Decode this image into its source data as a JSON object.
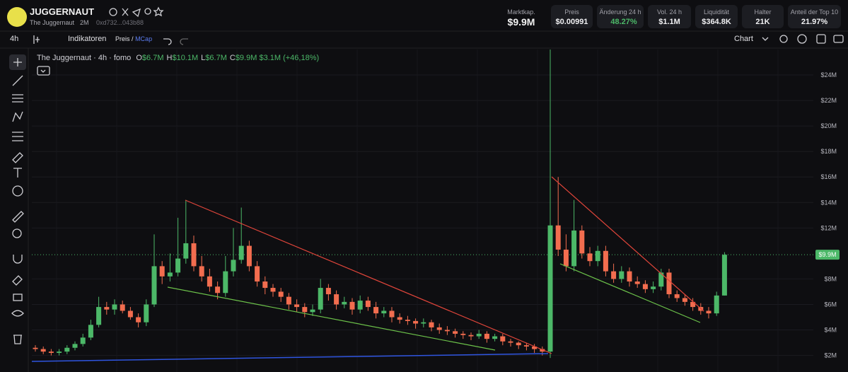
{
  "header": {
    "symbol": "JUGGERNAUT",
    "name": "The Juggernaut",
    "age": "2M",
    "address": "0xd732...043b88",
    "stats": [
      {
        "label": "Marktkap.",
        "value": "$9.9M"
      },
      {
        "label": "Preis",
        "value": "$0.00991"
      },
      {
        "label": "Änderung 24 h",
        "value": "48.27%"
      },
      {
        "label": "Vol. 24 h",
        "value": "$1.1M"
      },
      {
        "label": "Liquidität",
        "value": "$364.8K"
      },
      {
        "label": "Halter",
        "value": "21K"
      },
      {
        "label": "Anteil der Top 10",
        "value": "21.97%"
      }
    ]
  },
  "toolbar": {
    "interval": "4h",
    "indicators": "Indikatoren",
    "price": "Preis",
    "separator": "/",
    "mcap": "MCap",
    "chart_type": "Chart"
  },
  "chart_data": {
    "type": "candlestick",
    "legend": {
      "title": "The Juggernaut · 4h · fomo",
      "ohlc": [
        {
          "key": "O",
          "value": "$6.7M"
        },
        {
          "key": "H",
          "value": "$10.1M"
        },
        {
          "key": "L",
          "value": "$6.7M"
        },
        {
          "key": "C",
          "value": "$9.9M"
        }
      ],
      "change": "$3.1M (+46,18%)"
    },
    "up_color": "#4cb868",
    "down_color": "#f26d4f",
    "open": [
      2.6,
      2.5,
      2.3,
      2.2,
      2.3,
      2.6,
      2.9,
      3.4,
      4.4,
      5.8,
      5.6,
      6.0,
      5.5,
      5.0,
      4.6,
      6.0,
      9.0,
      8.2,
      8.5,
      9.6,
      10.8,
      9.0,
      8.2,
      7.4,
      6.9,
      8.6,
      9.5,
      10.6,
      9.0,
      7.8,
      7.3,
      7.0,
      6.6,
      6.0,
      5.8,
      5.4,
      5.6,
      7.3,
      6.8,
      6.0,
      6.2,
      5.6,
      6.3,
      5.8,
      5.3,
      5.5,
      5.0,
      4.8,
      4.7,
      4.5,
      4.6,
      4.2,
      4.0,
      3.9,
      3.7,
      3.6,
      3.5,
      3.7,
      3.3,
      3.5,
      3.1,
      3.0,
      2.8,
      2.7,
      2.5,
      2.3,
      12.2,
      10.3,
      9.0,
      11.8,
      10.0,
      9.4,
      10.2,
      8.6,
      8.0,
      8.6,
      7.8,
      7.6,
      7.2,
      7.4,
      8.5,
      6.8,
      6.5,
      6.2,
      5.8,
      5.5,
      5.3,
      6.7
    ],
    "high": [
      2.8,
      2.7,
      2.5,
      2.5,
      2.8,
      3.1,
      3.7,
      4.8,
      6.6,
      6.2,
      6.4,
      6.3,
      5.8,
      5.3,
      6.4,
      11.5,
      9.4,
      10.0,
      12.8,
      14.2,
      11.4,
      9.8,
      8.8,
      7.8,
      9.8,
      12.0,
      13.6,
      11.0,
      9.4,
      8.2,
      7.6,
      7.3,
      6.9,
      6.4,
      6.1,
      6.0,
      8.0,
      7.6,
      7.1,
      6.6,
      6.5,
      6.7,
      6.6,
      6.2,
      5.8,
      5.8,
      5.3,
      5.1,
      4.9,
      4.9,
      4.8,
      4.5,
      4.3,
      4.1,
      3.9,
      3.8,
      4.0,
      3.9,
      3.7,
      3.7,
      3.3,
      3.1,
      3.0,
      2.9,
      2.7,
      26.0,
      16.0,
      11.5,
      14.2,
      12.2,
      10.5,
      10.6,
      10.6,
      9.2,
      9.0,
      8.9,
      8.2,
      7.9,
      7.8,
      8.8,
      8.8,
      7.1,
      6.8,
      6.5,
      6.1,
      5.8,
      7.0,
      10.1
    ],
    "low": [
      2.3,
      2.1,
      2.0,
      2.0,
      2.1,
      2.4,
      2.7,
      3.2,
      4.2,
      5.2,
      5.2,
      5.3,
      4.8,
      4.2,
      4.3,
      5.8,
      7.6,
      7.8,
      8.2,
      9.2,
      8.6,
      7.8,
      7.0,
      6.4,
      6.6,
      8.2,
      9.2,
      8.6,
      7.4,
      6.8,
      6.6,
      6.2,
      5.6,
      5.4,
      5.0,
      5.1,
      5.3,
      6.3,
      5.6,
      5.7,
      5.2,
      5.3,
      5.5,
      4.9,
      5.0,
      4.6,
      4.5,
      4.4,
      4.1,
      4.2,
      3.9,
      3.7,
      3.6,
      3.4,
      3.3,
      3.2,
      3.3,
      3.0,
      3.1,
      2.8,
      2.7,
      2.5,
      2.4,
      2.2,
      2.0,
      1.8,
      9.8,
      8.6,
      8.6,
      9.6,
      9.0,
      9.0,
      8.2,
      7.7,
      7.7,
      7.4,
      7.3,
      6.9,
      6.9,
      7.1,
      6.5,
      6.2,
      5.9,
      5.5,
      5.2,
      4.9,
      5.1,
      6.7
    ],
    "close": [
      2.5,
      2.3,
      2.2,
      2.3,
      2.6,
      2.9,
      3.4,
      4.4,
      5.8,
      5.6,
      6.0,
      5.5,
      5.0,
      4.6,
      6.0,
      9.0,
      8.2,
      8.5,
      9.6,
      10.8,
      9.0,
      8.2,
      7.4,
      6.9,
      8.6,
      9.5,
      10.6,
      9.0,
      7.8,
      7.3,
      7.0,
      6.6,
      6.0,
      5.8,
      5.4,
      5.6,
      7.3,
      6.8,
      6.0,
      6.2,
      5.6,
      6.3,
      5.8,
      5.3,
      5.5,
      5.0,
      4.8,
      4.7,
      4.5,
      4.6,
      4.2,
      4.0,
      3.9,
      3.7,
      3.6,
      3.5,
      3.7,
      3.3,
      3.5,
      3.1,
      3.0,
      2.8,
      2.7,
      2.5,
      2.3,
      12.2,
      10.3,
      9.0,
      11.8,
      10.0,
      9.4,
      10.2,
      8.6,
      8.0,
      8.6,
      7.8,
      7.6,
      7.2,
      7.4,
      8.5,
      6.8,
      6.5,
      6.2,
      5.8,
      5.5,
      5.3,
      6.7,
      9.9
    ],
    "ylim": [
      0.7,
      26
    ],
    "yticks": [
      {
        "value": 2,
        "label": "$2M"
      },
      {
        "value": 4,
        "label": "$4M"
      },
      {
        "value": 6,
        "label": "$6M"
      },
      {
        "value": 8,
        "label": "$8M"
      },
      {
        "value": 12,
        "label": "$12M"
      },
      {
        "value": 14,
        "label": "$14M"
      },
      {
        "value": 16,
        "label": "$16M"
      },
      {
        "value": 18,
        "label": "$18M"
      },
      {
        "value": 20,
        "label": "$20M"
      },
      {
        "value": 22,
        "label": "$22M"
      },
      {
        "value": 24,
        "label": "$24M"
      }
    ],
    "price_line": {
      "value": 9.9,
      "label": "$9.9M",
      "color": "#4cb868"
    },
    "grid": true
  }
}
